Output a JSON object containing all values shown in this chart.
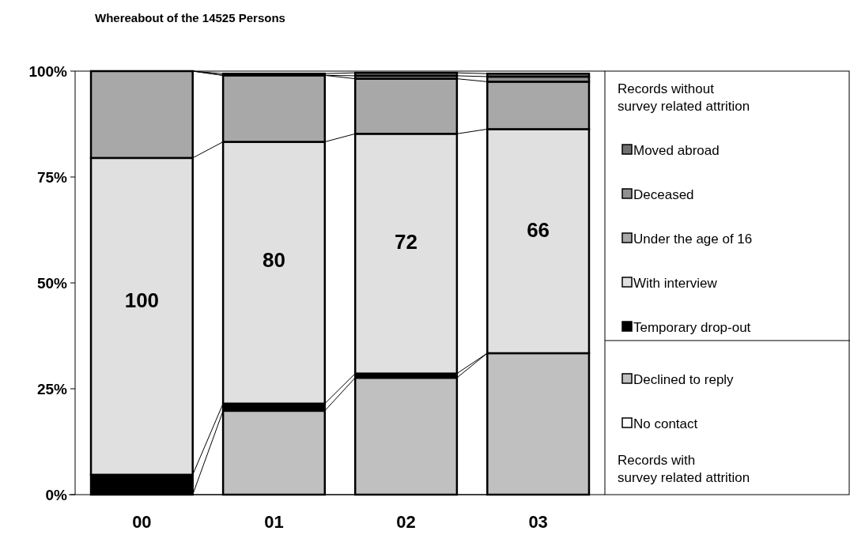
{
  "chart_data": {
    "type": "bar",
    "stacked": true,
    "title": "Whereabout of the 14525 Persons",
    "categories": [
      "00",
      "01",
      "02",
      "03"
    ],
    "ylim": [
      0,
      100
    ],
    "yticks": [
      {
        "value": 0,
        "label": "0%"
      },
      {
        "value": 25,
        "label": "25%"
      },
      {
        "value": 50,
        "label": "50%"
      },
      {
        "value": 75,
        "label": "75%"
      },
      {
        "value": 100,
        "label": "100%"
      }
    ],
    "series": [
      {
        "name": "No contact",
        "color": "#ffffff",
        "values": [
          0,
          null,
          null,
          null
        ]
      },
      {
        "name": "Declined to reply",
        "color": "#c0c0c0",
        "values": [
          0,
          19.8,
          27.6,
          33.4
        ]
      },
      {
        "name": "Temporary drop-out",
        "color": "#000000",
        "values": [
          4.7,
          1.7,
          1.0,
          null
        ]
      },
      {
        "name": "With interview",
        "color": "#e0e0e0",
        "values": [
          74.8,
          61.8,
          56.6,
          52.9
        ]
      },
      {
        "name": "Under the age of 16",
        "color": "#a8a8a8",
        "values": [
          20.5,
          15.7,
          13.0,
          11.2
        ]
      },
      {
        "name": "Deceased",
        "color": "#909090",
        "values": [
          0,
          null,
          0.7,
          1.2
        ]
      },
      {
        "name": "Moved abroad",
        "color": "#707070",
        "values": [
          0,
          0.4,
          0.7,
          0.7
        ]
      }
    ],
    "legend": "right",
    "annotations": [
      "100",
      "80",
      "72",
      "66",
      "Records without survey related attrition",
      "Records with survey related attrition"
    ]
  }
}
